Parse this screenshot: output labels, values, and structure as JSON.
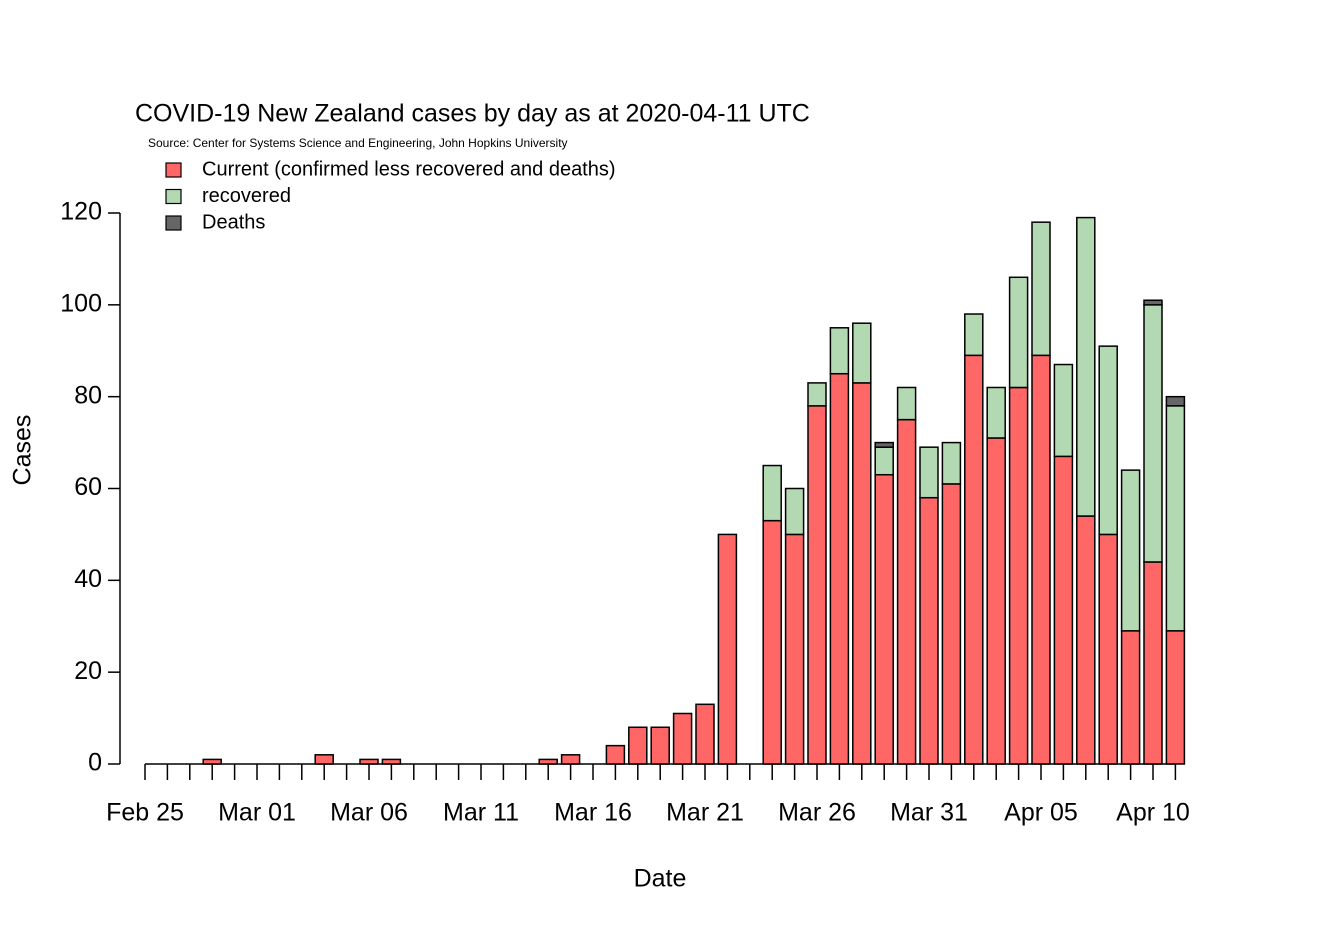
{
  "chart_data": {
    "type": "stacked_bar",
    "title": "COVID-19 New Zealand cases by day as at 2020-04-11 UTC",
    "subtitle": "Source: Center for Systems Science and Engineering, John Hopkins University",
    "x_label": "Date",
    "y_label": "Cases",
    "categories": [
      "Feb 25",
      null,
      null,
      null,
      null,
      "Mar 01",
      null,
      null,
      null,
      null,
      "Mar 06",
      null,
      null,
      null,
      null,
      "Mar 11",
      null,
      null,
      null,
      null,
      "Mar 16",
      null,
      null,
      null,
      null,
      "Mar 21",
      null,
      null,
      null,
      null,
      "Mar 26",
      null,
      null,
      null,
      null,
      "Mar 31",
      null,
      null,
      null,
      null,
      "Apr 05",
      null,
      null,
      null,
      null,
      "Apr 10",
      null
    ],
    "series": [
      {
        "name": "Current (confirmed less recovered and deaths)",
        "color": "#ff6666",
        "values": [
          0,
          0,
          0,
          1,
          0,
          0,
          0,
          0,
          2,
          0,
          1,
          1,
          0,
          0,
          0,
          0,
          0,
          0,
          1,
          2,
          0,
          4,
          8,
          8,
          11,
          13,
          50,
          0,
          53,
          50,
          78,
          85,
          83,
          63,
          75,
          58,
          61,
          89,
          71,
          82,
          89,
          67,
          54,
          50,
          29,
          44,
          29
        ]
      },
      {
        "name": "recovered",
        "color": "#b3d9b3",
        "values": [
          0,
          0,
          0,
          0,
          0,
          0,
          0,
          0,
          0,
          0,
          0,
          0,
          0,
          0,
          0,
          0,
          0,
          0,
          0,
          0,
          0,
          0,
          0,
          0,
          0,
          0,
          0,
          0,
          12,
          10,
          5,
          10,
          13,
          6,
          7,
          11,
          9,
          9,
          11,
          24,
          29,
          20,
          65,
          41,
          35,
          56,
          49
        ]
      },
      {
        "name": "Deaths",
        "color": "#666666",
        "values": [
          0,
          0,
          0,
          0,
          0,
          0,
          0,
          0,
          0,
          0,
          0,
          0,
          0,
          0,
          0,
          0,
          0,
          0,
          0,
          0,
          0,
          0,
          0,
          0,
          0,
          0,
          0,
          0,
          0,
          0,
          0,
          0,
          0,
          1,
          0,
          0,
          0,
          0,
          0,
          0,
          0,
          0,
          0,
          0,
          0,
          1,
          2
        ]
      }
    ],
    "ylim": [
      0,
      120
    ],
    "yticks": [
      0,
      20,
      40,
      60,
      80,
      100,
      120
    ],
    "legend": "top-left"
  }
}
